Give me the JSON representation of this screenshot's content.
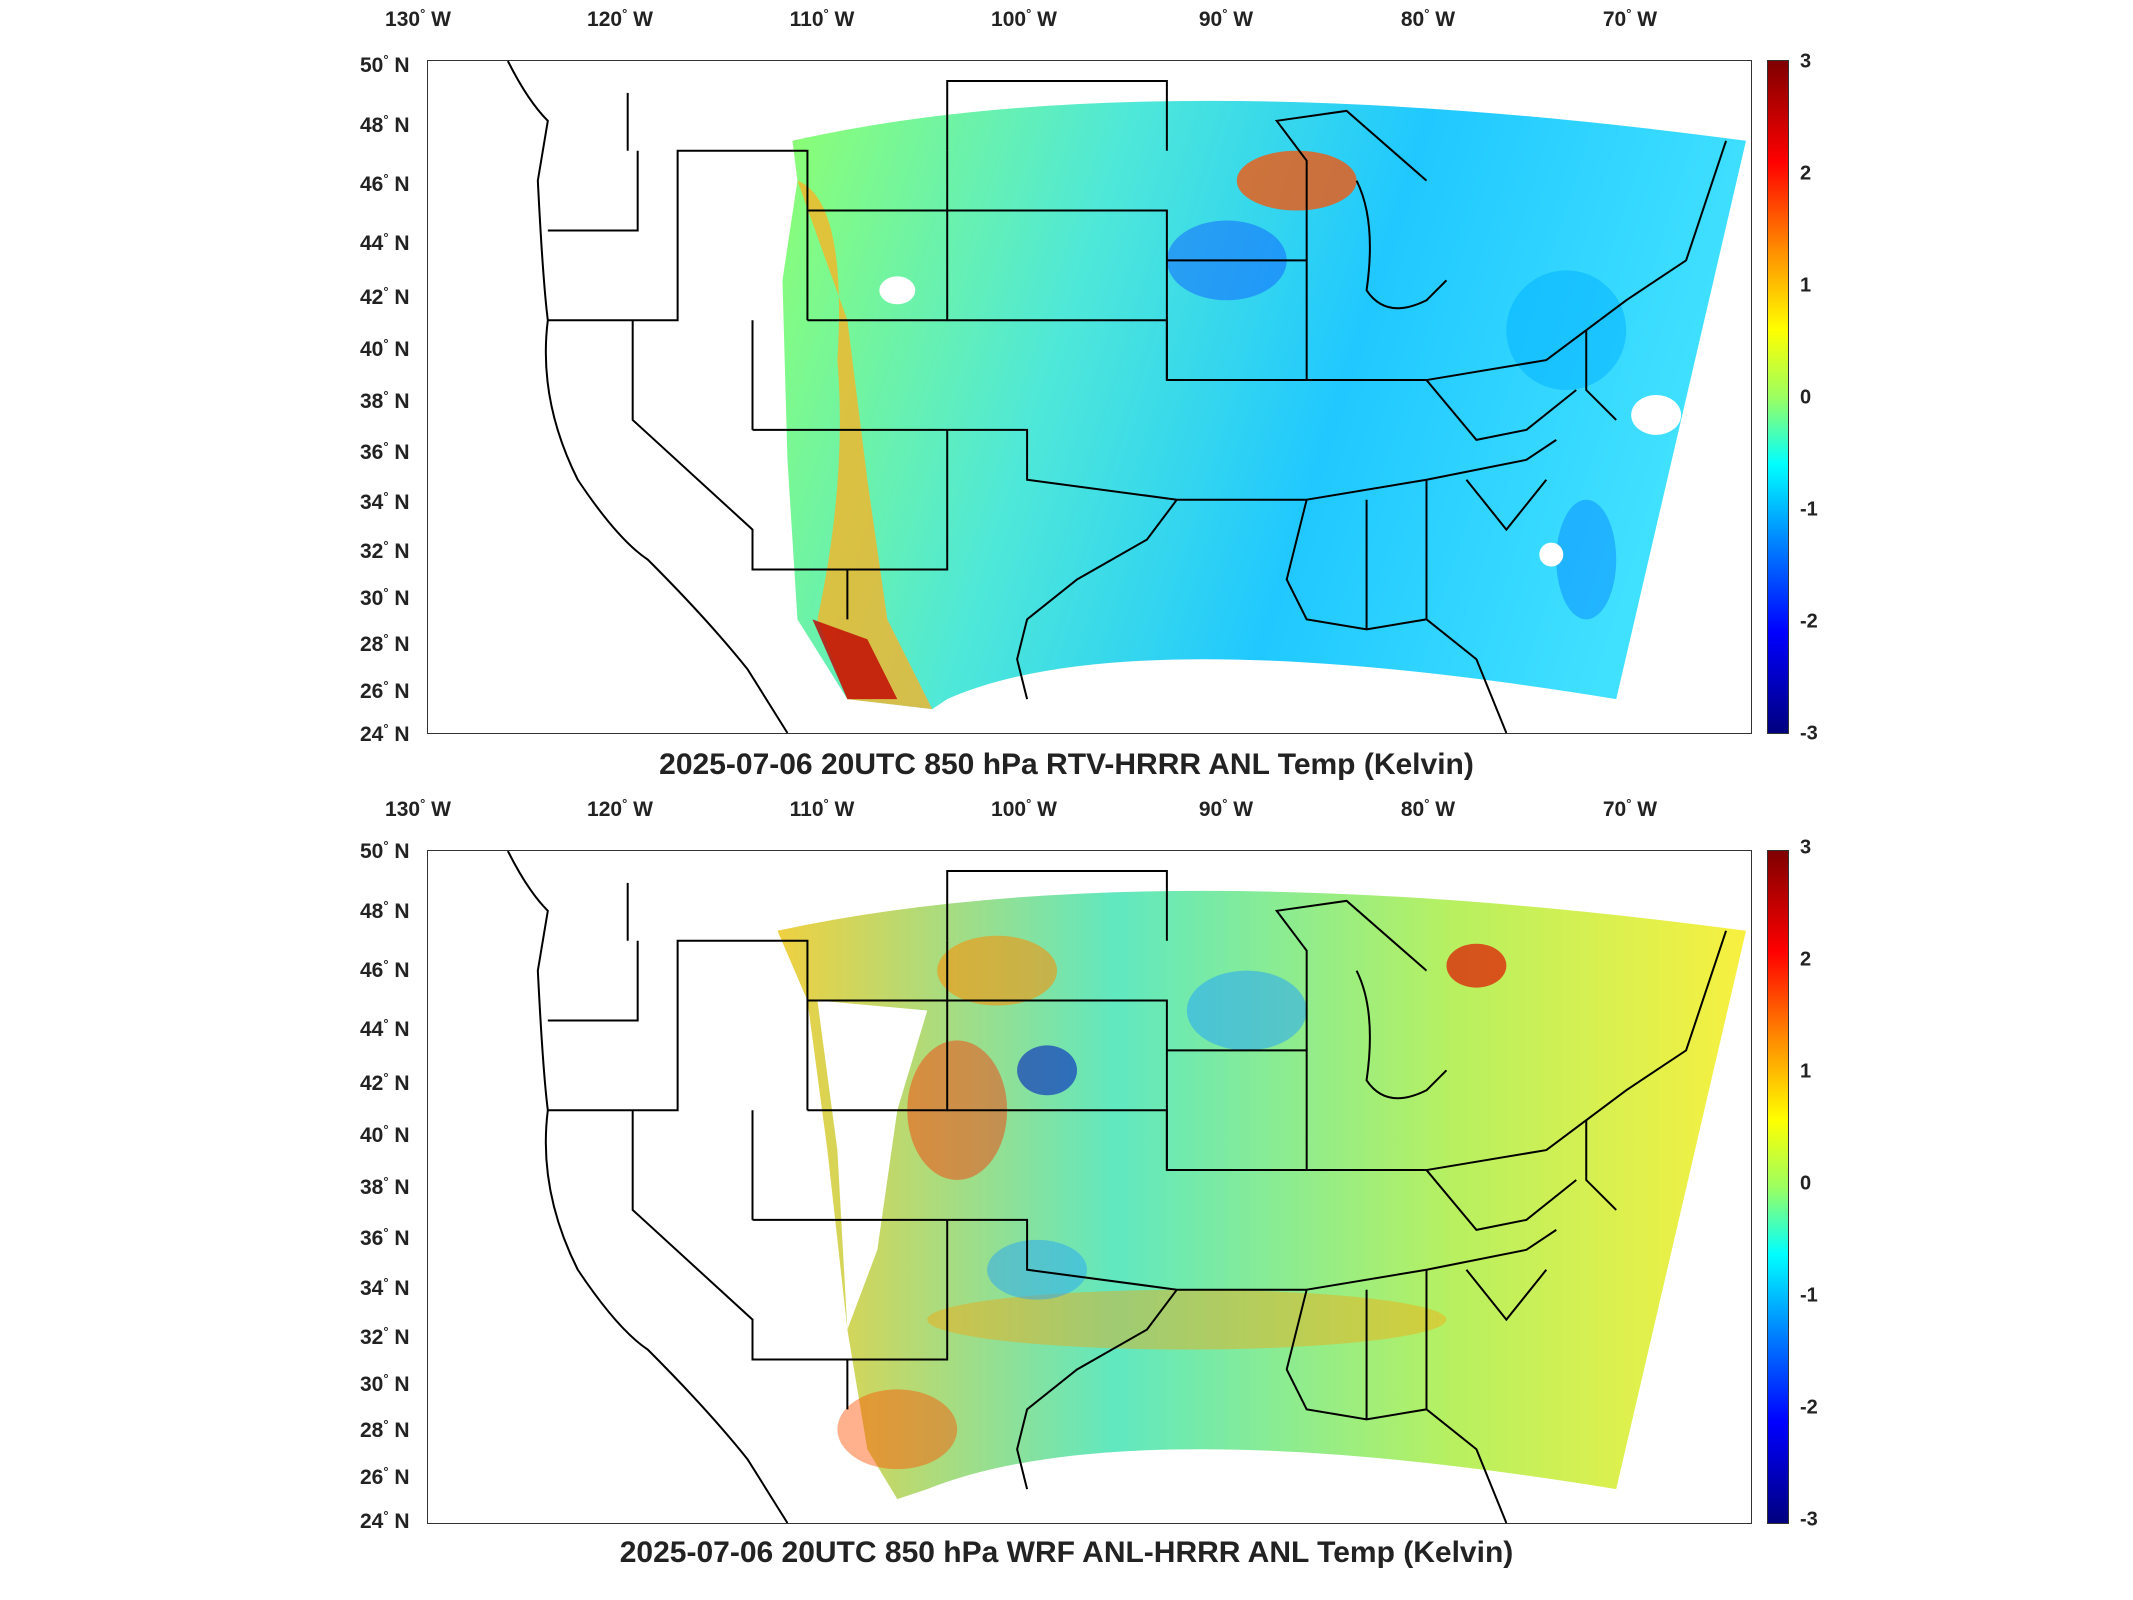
{
  "panels": [
    {
      "title": "2025-07-06 20UTC 850 hPa RTV-HRRR ANL Temp (Kelvin)",
      "field": "rtv"
    },
    {
      "title": "2025-07-06 20UTC 850 hPa WRF ANL-HRRR ANL Temp (Kelvin)",
      "field": "wrf"
    }
  ],
  "lon_ticks": [
    {
      "deg": "130",
      "hem": "W"
    },
    {
      "deg": "120",
      "hem": "W"
    },
    {
      "deg": "110",
      "hem": "W"
    },
    {
      "deg": "100",
      "hem": "W"
    },
    {
      "deg": "90",
      "hem": "W"
    },
    {
      "deg": "80",
      "hem": "W"
    },
    {
      "deg": "70",
      "hem": "W"
    }
  ],
  "lat_ticks": [
    {
      "deg": "50",
      "hem": "N"
    },
    {
      "deg": "48",
      "hem": "N"
    },
    {
      "deg": "46",
      "hem": "N"
    },
    {
      "deg": "44",
      "hem": "N"
    },
    {
      "deg": "42",
      "hem": "N"
    },
    {
      "deg": "40",
      "hem": "N"
    },
    {
      "deg": "38",
      "hem": "N"
    },
    {
      "deg": "36",
      "hem": "N"
    },
    {
      "deg": "34",
      "hem": "N"
    },
    {
      "deg": "32",
      "hem": "N"
    },
    {
      "deg": "30",
      "hem": "N"
    },
    {
      "deg": "28",
      "hem": "N"
    },
    {
      "deg": "26",
      "hem": "N"
    },
    {
      "deg": "24",
      "hem": "N"
    }
  ],
  "colorbar": {
    "ticks": [
      "3",
      "2",
      "1",
      "0",
      "-1",
      "-2",
      "-3"
    ],
    "min": -3,
    "max": 3,
    "colormap": "jet"
  },
  "colors": {
    "coast": "#000000",
    "frame": "#333333"
  }
}
